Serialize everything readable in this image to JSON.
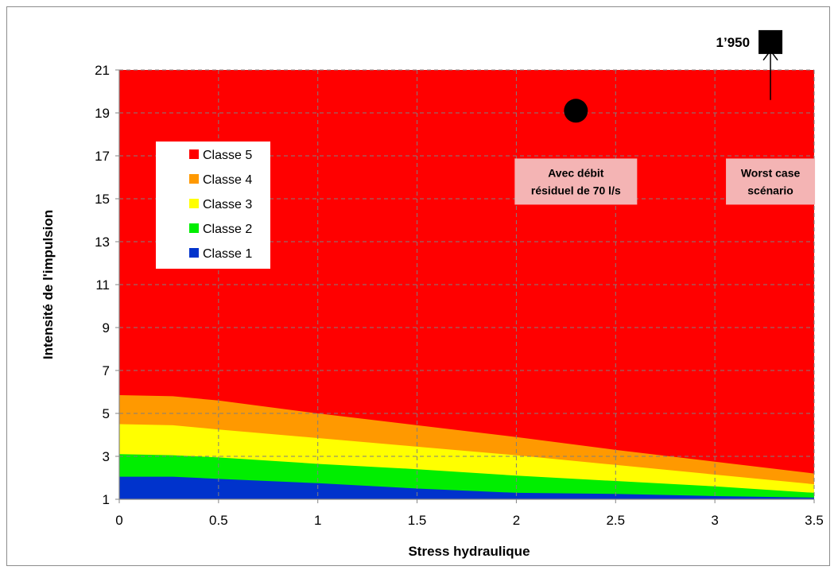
{
  "chart_data": {
    "type": "area",
    "stacked": true,
    "x": [
      0,
      0.27,
      0.5,
      1.0,
      1.5,
      2.0,
      2.5,
      3.0,
      3.5
    ],
    "xlim": [
      0,
      3.5
    ],
    "ylim": [
      1,
      21
    ],
    "xticks": [
      0,
      0.5,
      1,
      1.5,
      2,
      2.5,
      3,
      3.5
    ],
    "yticks": [
      1,
      3,
      5,
      7,
      9,
      11,
      13,
      15,
      17,
      19,
      21
    ],
    "xtick_labels": [
      "0",
      "0.5",
      "1",
      "1.5",
      "2",
      "2.5",
      "3",
      "3.5"
    ],
    "ytick_labels": [
      "1",
      "3",
      "5",
      "7",
      "9",
      "11",
      "13",
      "15",
      "17",
      "19",
      "21"
    ],
    "xlabel": "Stress hydraulique",
    "ylabel": "Intensité de l'impulsion",
    "grid": true,
    "legend_position": "left",
    "series": [
      {
        "name": "Classe 1",
        "color": "#0033cc",
        "upper": [
          2.05,
          2.05,
          1.95,
          1.75,
          1.5,
          1.3,
          1.25,
          1.15,
          1.08
        ]
      },
      {
        "name": "Classe 2",
        "color": "#00ee00",
        "upper": [
          3.1,
          3.05,
          2.95,
          2.65,
          2.4,
          2.1,
          1.85,
          1.6,
          1.3
        ]
      },
      {
        "name": "Classe 3",
        "color": "#ffff00",
        "upper": [
          4.5,
          4.45,
          4.25,
          3.85,
          3.45,
          3.05,
          2.6,
          2.15,
          1.7
        ]
      },
      {
        "name": "Classe 4",
        "color": "#ff9900",
        "upper": [
          5.85,
          5.8,
          5.6,
          5.0,
          4.45,
          3.9,
          3.3,
          2.75,
          2.2
        ]
      },
      {
        "name": "Classe 5",
        "color": "#ff0000",
        "upper": [
          21,
          21,
          21,
          21,
          21,
          21,
          21,
          21,
          21
        ]
      }
    ],
    "points": [
      {
        "marker": "circle",
        "x": 2.3,
        "y": 19.1,
        "color": "#000000"
      },
      {
        "marker": "square",
        "x": 3.28,
        "y": 22.3,
        "color": "#000000",
        "label": "1’950"
      }
    ],
    "annotations": [
      {
        "lines": [
          "Avec débit",
          "résiduel de 70 l/s"
        ],
        "x": 2.3,
        "y": 15.8,
        "bg": "#f4b4b4"
      },
      {
        "lines": [
          "Worst case",
          "scénario"
        ],
        "x": 3.28,
        "y": 15.8,
        "bg": "#f4b4b4"
      }
    ],
    "arrow": {
      "x": 3.28,
      "from_y": 19.6,
      "to_y": 21.9
    }
  }
}
